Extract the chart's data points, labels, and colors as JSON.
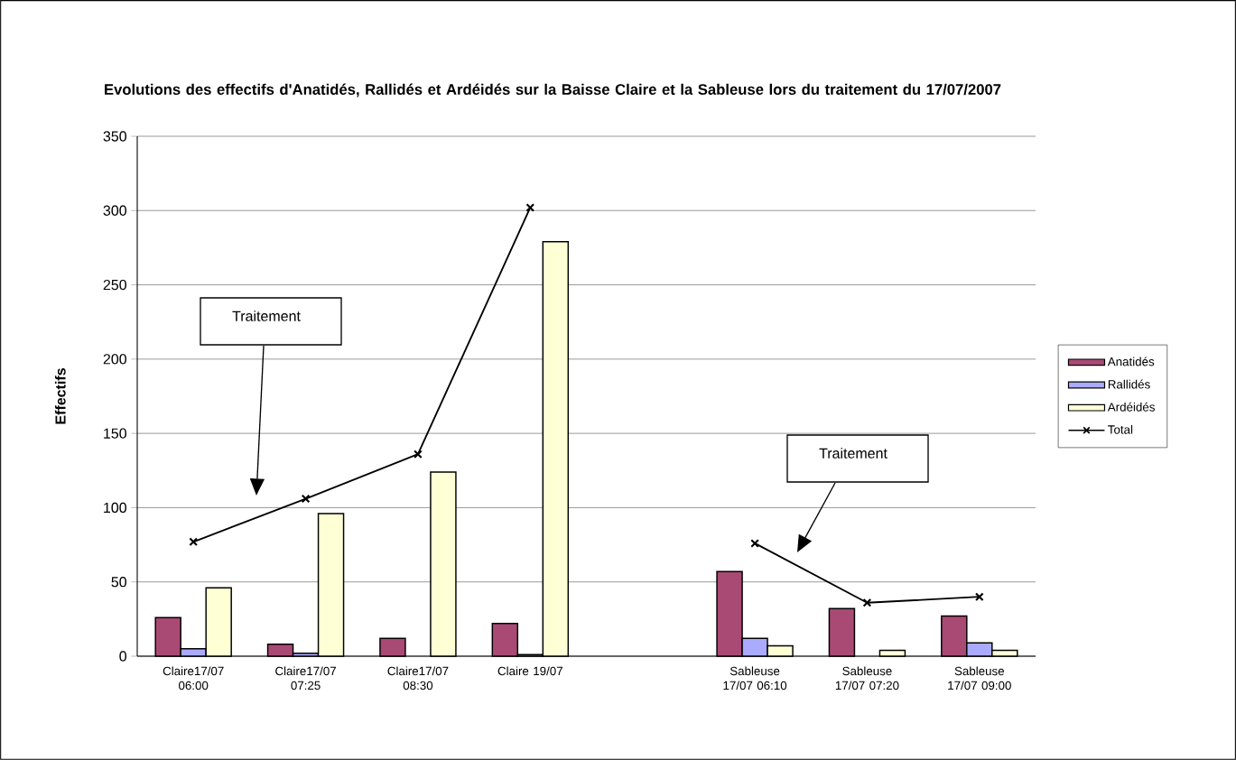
{
  "chart_data": {
    "type": "bar",
    "title": "Evolutions des effectifs d'Anatidés, Rallidés et Ardéidés sur la Baisse Claire et la Sableuse lors du traitement du 17/07/2007",
    "ylabel": "Effectifs",
    "categories": [
      "Claire17/07 06:00",
      "Claire17/07 07:25",
      "Claire17/07 08:30",
      "Claire 19/07",
      null,
      "Sableuse 17/07 06:10",
      "Sableuse 17/07 07:20",
      "Sableuse 17/07 09:00"
    ],
    "series": [
      {
        "name": "Anatidés",
        "color": "#a94a74",
        "values": [
          26,
          8,
          12,
          22,
          null,
          57,
          32,
          27
        ]
      },
      {
        "name": "Rallidés",
        "color": "#aaaaff",
        "values": [
          5,
          2,
          0,
          1,
          null,
          12,
          0,
          9
        ]
      },
      {
        "name": "Ardéidés",
        "color": "#ffffd6",
        "values": [
          46,
          96,
          124,
          279,
          null,
          7,
          4,
          4
        ]
      },
      {
        "name": "Total",
        "type": "line",
        "color": "#000000",
        "marker": "cross",
        "line_style": "solid",
        "values": [
          77,
          106,
          136,
          302,
          null,
          76,
          36,
          40
        ]
      }
    ],
    "ylim": [
      0,
      350
    ],
    "yticks": [
      0,
      50,
      100,
      150,
      200,
      250,
      300,
      350
    ],
    "grid": "y",
    "legend": "right",
    "annotations": [
      "Traitement",
      "Traitement"
    ]
  }
}
